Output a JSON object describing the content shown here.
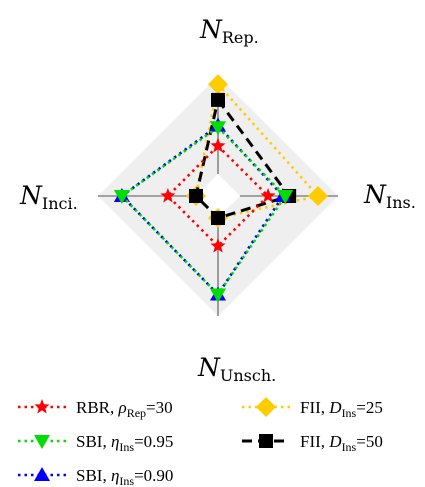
{
  "chart_data": {
    "type": "radar",
    "axes": [
      {
        "key": "top",
        "symbol": "N",
        "sub": "Rep."
      },
      {
        "key": "right",
        "symbol": "N",
        "sub": "Ins."
      },
      {
        "key": "bottom",
        "symbol": "N",
        "sub": "Unsch."
      },
      {
        "key": "left",
        "symbol": "N",
        "sub": "Inci."
      }
    ],
    "range": [
      0,
      1
    ],
    "series": [
      {
        "name": "RBR, ρRep=30",
        "legend": {
          "pre": "RBR, ",
          "sym": "ρ",
          "sub": "Rep",
          "post": "=30"
        },
        "color": "#ff0000",
        "marker": "star",
        "line": "dotted",
        "values": [
          0.36,
          0.36,
          0.36,
          0.36
        ]
      },
      {
        "name": "SBI, ηIns=0.95",
        "legend": {
          "pre": "SBI, ",
          "sym": "η",
          "sub": "Ins",
          "post": "=0.95"
        },
        "color": "#00dd00",
        "marker": "triangle-down",
        "line": "dotted",
        "values": [
          0.6,
          0.58,
          0.98,
          0.95
        ]
      },
      {
        "name": "SBI, ηIns=0.90",
        "legend": {
          "pre": "SBI, ",
          "sym": "η",
          "sub": "Ins",
          "post": "=0.90"
        },
        "color": "#0000ff",
        "marker": "triangle-up",
        "line": "dotted",
        "values": [
          0.62,
          0.55,
          0.98,
          0.95
        ]
      },
      {
        "name": "FII, DIns=25",
        "legend": {
          "pre": "FII, ",
          "sym": "D",
          "sub": "Ins",
          "post": "=25"
        },
        "color": "#ffcc00",
        "marker": "diamond",
        "line": "dotted",
        "values": [
          1.15,
          1.0,
          0.0,
          0.0
        ]
      },
      {
        "name": "FII, DIns=50",
        "legend": {
          "pre": "FII, ",
          "sym": "D",
          "sub": "Ins",
          "post": "=50"
        },
        "color": "#000000",
        "marker": "square",
        "line": "dashed",
        "values": [
          0.95,
          0.63,
          0.0,
          0.0
        ]
      }
    ]
  }
}
